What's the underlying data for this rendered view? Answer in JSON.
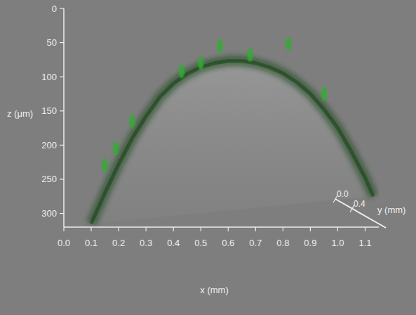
{
  "chart_data": {
    "type": "line",
    "xlabel": "x (mm)",
    "ylabel": "z (μm)",
    "zlabel": "y (mm)",
    "xlim": [
      0,
      1.15
    ],
    "xticks": [
      {
        "value": 0,
        "label": "0.0"
      },
      0.1,
      0.2,
      0.3,
      0.4,
      0.5,
      0.6,
      0.7,
      0.8,
      0.9,
      {
        "value": 1,
        "label": "1.0"
      },
      1.1
    ],
    "ylim": [
      320,
      0
    ],
    "yticks": [
      0,
      50,
      100,
      150,
      200,
      250,
      300
    ],
    "zlim": [
      0,
      1.2
    ],
    "zticks": [
      {
        "value": 0,
        "label": "0.0"
      },
      0.4
    ],
    "grid": false,
    "series": [
      {
        "type": "area",
        "color": "#1f4a1f",
        "x": [
          0.1,
          0.15,
          0.2,
          0.25,
          0.3,
          0.35,
          0.4,
          0.45,
          0.5,
          0.55,
          0.6,
          0.65,
          0.7,
          0.75,
          0.8,
          0.85,
          0.9,
          0.95,
          1.0,
          1.05,
          1.1,
          1.13
        ],
        "values": [
          315,
          270,
          228,
          190,
          158,
          130,
          110,
          96,
          86,
          80,
          77,
          77,
          80,
          86,
          95,
          108,
          125,
          148,
          175,
          210,
          248,
          275
        ]
      },
      {
        "type": "scatter",
        "color": "#2fae2f",
        "x": [
          0.15,
          0.19,
          0.25,
          0.43,
          0.5,
          0.57,
          0.68,
          0.82,
          0.95
        ],
        "values": [
          230,
          205,
          165,
          92,
          80,
          55,
          68,
          52,
          125
        ]
      }
    ]
  }
}
